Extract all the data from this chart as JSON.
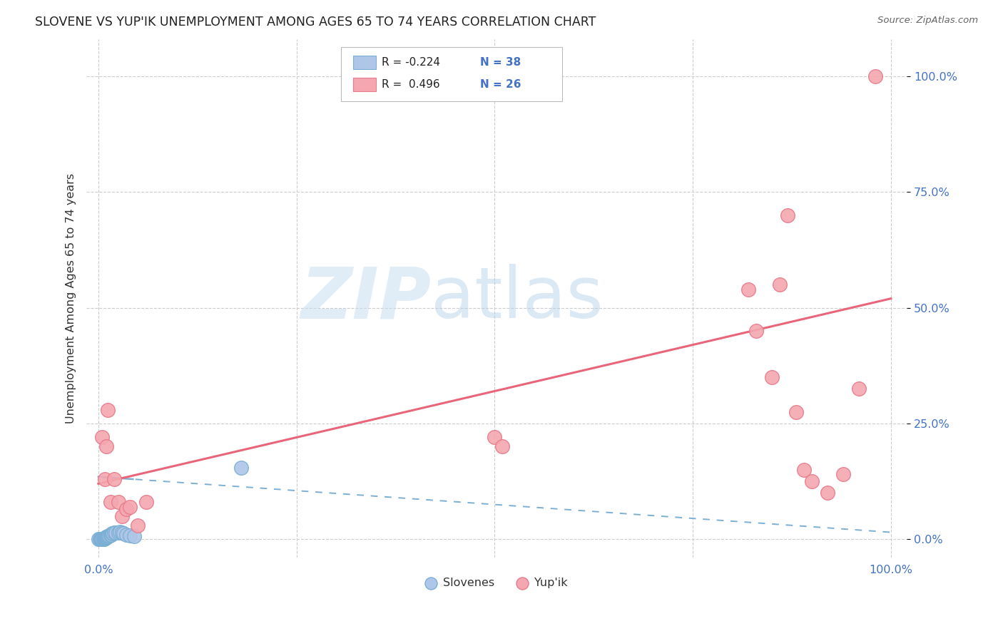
{
  "title": "SLOVENE VS YUP'IK UNEMPLOYMENT AMONG AGES 65 TO 74 YEARS CORRELATION CHART",
  "source": "Source: ZipAtlas.com",
  "ylabel": "Unemployment Among Ages 65 to 74 years",
  "ytick_labels": [
    "0.0%",
    "25.0%",
    "50.0%",
    "75.0%",
    "100.0%"
  ],
  "ytick_values": [
    0.0,
    0.25,
    0.5,
    0.75,
    1.0
  ],
  "xtick_labels": [
    "0.0%",
    "25.0%",
    "50.0%",
    "75.0%",
    "100.0%"
  ],
  "xtick_values": [
    0.0,
    0.25,
    0.5,
    0.75,
    1.0
  ],
  "slovene_color": "#aec6e8",
  "yupik_color": "#f4a7b0",
  "slovene_edge": "#7bafd4",
  "yupik_edge": "#e87a8a",
  "trend_slovene_color": "#7bafd4",
  "trend_yupik_color": "#e8657a",
  "legend_slovene_label": "Slovenes",
  "legend_yupik_label": "Yup'ik",
  "R_slovene": -0.224,
  "N_slovene": 38,
  "R_yupik": 0.496,
  "N_yupik": 26,
  "background_color": "#ffffff",
  "slovene_x": [
    0.0,
    0.002,
    0.003,
    0.004,
    0.004,
    0.005,
    0.005,
    0.006,
    0.006,
    0.007,
    0.007,
    0.008,
    0.008,
    0.009,
    0.009,
    0.01,
    0.01,
    0.01,
    0.011,
    0.012,
    0.012,
    0.013,
    0.014,
    0.015,
    0.015,
    0.016,
    0.017,
    0.018,
    0.02,
    0.022,
    0.025,
    0.027,
    0.03,
    0.032,
    0.035,
    0.04,
    0.045,
    0.18
  ],
  "slovene_y": [
    0.0,
    0.0,
    0.0,
    0.0,
    0.0,
    0.0,
    0.0,
    0.0,
    0.0,
    0.0,
    0.002,
    0.002,
    0.003,
    0.003,
    0.004,
    0.004,
    0.005,
    0.005,
    0.005,
    0.006,
    0.007,
    0.007,
    0.008,
    0.009,
    0.01,
    0.01,
    0.012,
    0.013,
    0.014,
    0.015,
    0.015,
    0.016,
    0.014,
    0.012,
    0.01,
    0.008,
    0.006,
    0.155
  ],
  "yupik_x": [
    0.005,
    0.008,
    0.01,
    0.012,
    0.015,
    0.02,
    0.025,
    0.03,
    0.035,
    0.04,
    0.05,
    0.06,
    0.5,
    0.51,
    0.82,
    0.83,
    0.85,
    0.86,
    0.87,
    0.88,
    0.89,
    0.9,
    0.92,
    0.94,
    0.96,
    0.98
  ],
  "yupik_y": [
    0.22,
    0.13,
    0.2,
    0.28,
    0.08,
    0.13,
    0.08,
    0.05,
    0.065,
    0.07,
    0.03,
    0.08,
    0.22,
    0.2,
    0.54,
    0.45,
    0.35,
    0.55,
    0.7,
    0.275,
    0.15,
    0.125,
    0.1,
    0.14,
    0.325,
    1.0
  ]
}
